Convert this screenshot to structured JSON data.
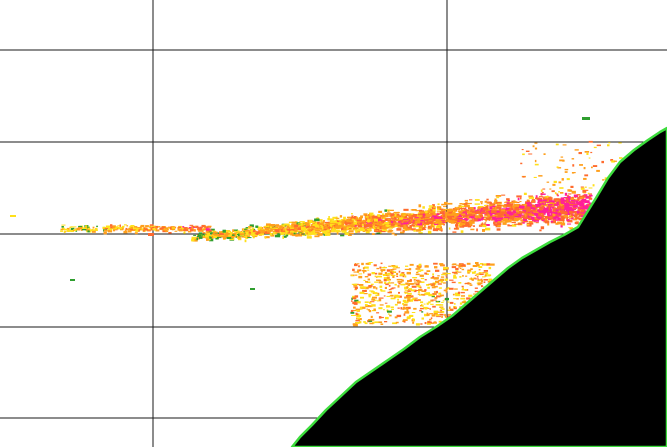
{
  "view": {
    "background": "#ffffff",
    "grid_color": "#1a1a1a",
    "land_color": "#000000",
    "coastline_color": "#3ddc3d"
  },
  "detection_colors": {
    "strong": "#ff1f9a",
    "high": "#ff6b2e",
    "medium": "#ff9f1c",
    "low": "#ffe01a",
    "weak": "#2f9e2f"
  }
}
